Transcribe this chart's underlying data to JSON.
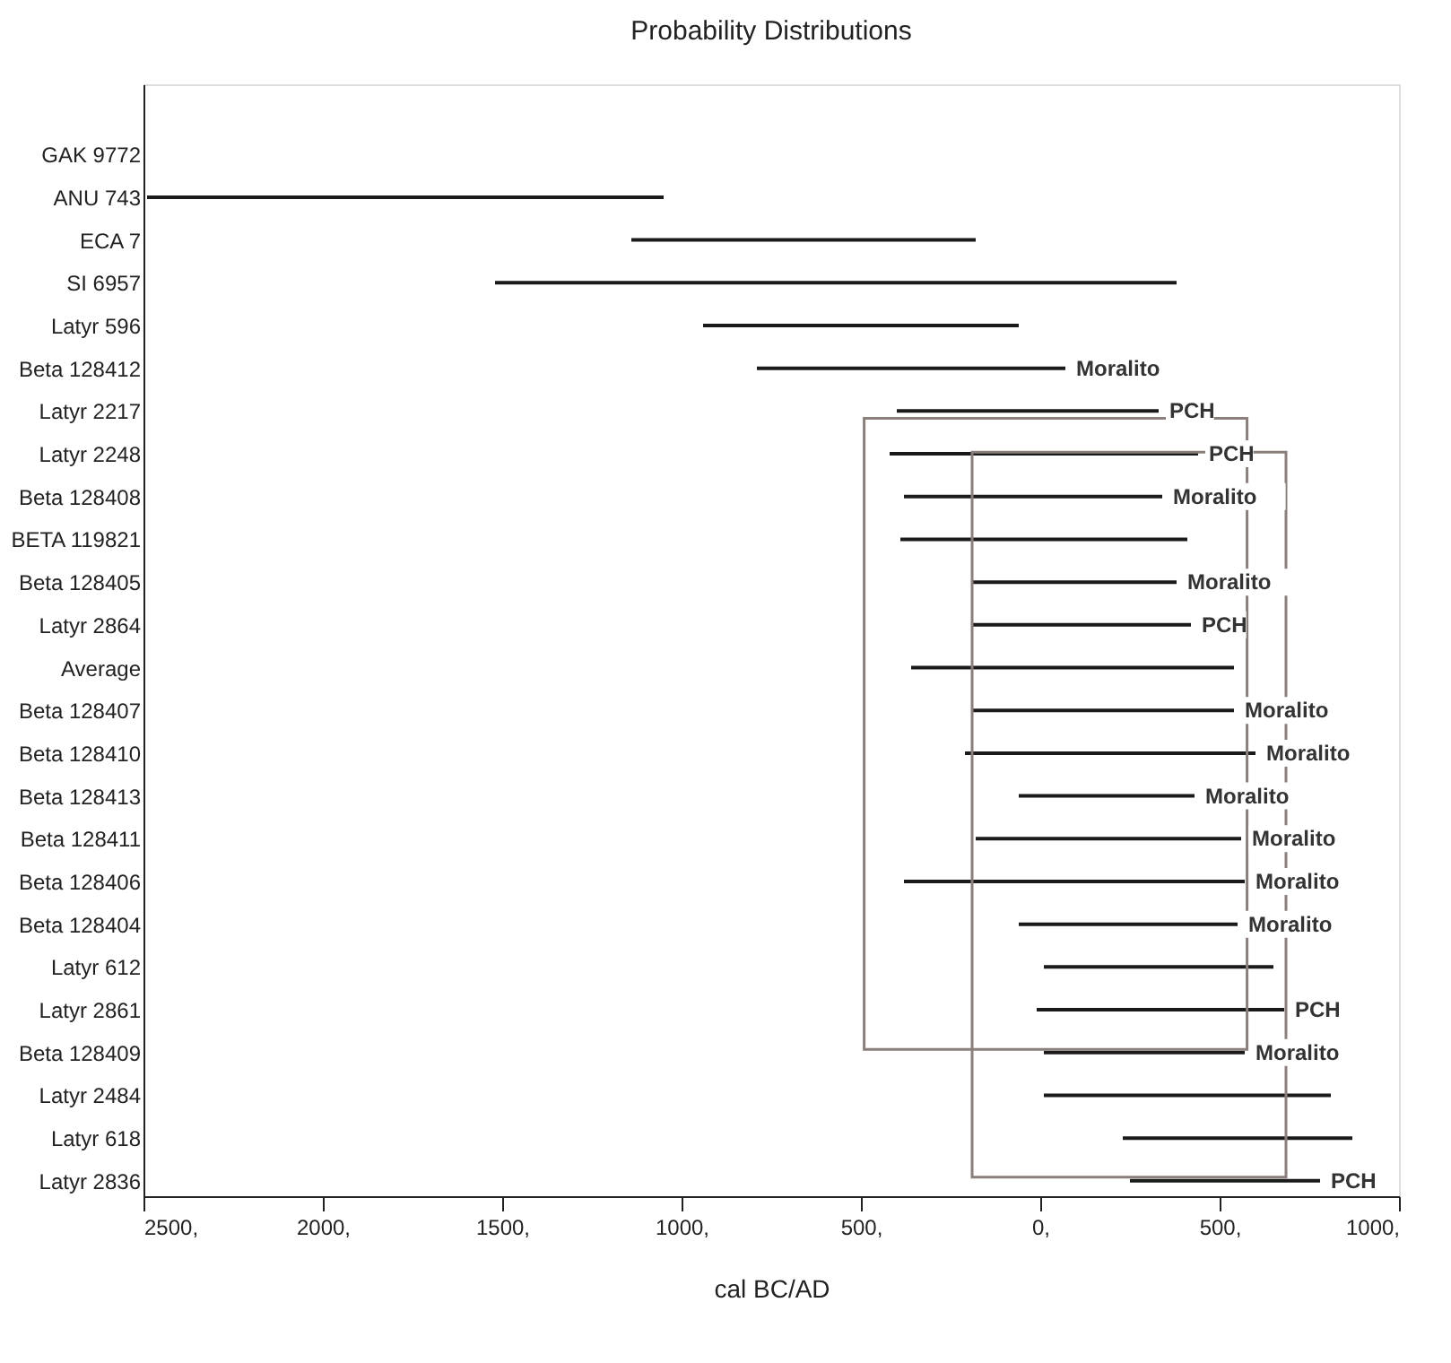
{
  "chart_data": {
    "type": "bar",
    "orientation": "horizontal",
    "title": "Probability Distributions",
    "xlabel": "cal BC/AD",
    "categories": [
      "GAK 9772",
      "ANU 743",
      "ECA 7",
      "SI 6957",
      "Latyr 596",
      "Beta 128412",
      "Latyr 2217",
      "Latyr 2248",
      "Beta 128408",
      "BETA 119821",
      "Beta 128405",
      "Latyr 2864",
      "Average",
      "Beta 128407",
      "Beta 128410",
      "Beta 128413",
      "Beta 128411",
      "Beta 128406",
      "Beta 128404",
      "Latyr 612",
      "Latyr 2861",
      "Beta 128409",
      "Latyr 2484",
      "Latyr 618",
      "Latyr 2836"
    ],
    "base": [
      null,
      -2490,
      -1140,
      -1520,
      -940,
      -790,
      -400,
      -420,
      -380,
      -390,
      -190,
      -190,
      -360,
      -190,
      -210,
      -60,
      -180,
      -380,
      -60,
      10,
      -10,
      10,
      10,
      230,
      250
    ],
    "values": [
      null,
      1440,
      960,
      1900,
      880,
      860,
      730,
      860,
      720,
      800,
      570,
      610,
      900,
      730,
      810,
      490,
      740,
      950,
      610,
      640,
      690,
      560,
      800,
      640,
      530
    ],
    "color": "#1a1a1a",
    "xlim": [
      -2500,
      1000
    ],
    "xticks": [
      {
        "value": -2500,
        "label": "2500,"
      },
      {
        "value": -2000,
        "label": "2000,"
      },
      {
        "value": -1500,
        "label": "1500,"
      },
      {
        "value": -1000,
        "label": "1000,"
      },
      {
        "value": -500,
        "label": "500,"
      },
      {
        "value": 0,
        "label": "0,"
      },
      {
        "value": 500,
        "label": "500,"
      },
      {
        "value": 1000,
        "label": "1000,"
      }
    ],
    "grid": false,
    "value_labels": [
      null,
      null,
      null,
      null,
      null,
      "Moralito",
      "PCH",
      "PCH",
      "Moralito",
      null,
      "Moralito",
      "PCH",
      null,
      "Moralito",
      "Moralito",
      "Moralito",
      "Moralito",
      "Moralito",
      "Moralito",
      null,
      "PCH",
      "Moralito",
      null,
      null,
      "PCH"
    ]
  }
}
